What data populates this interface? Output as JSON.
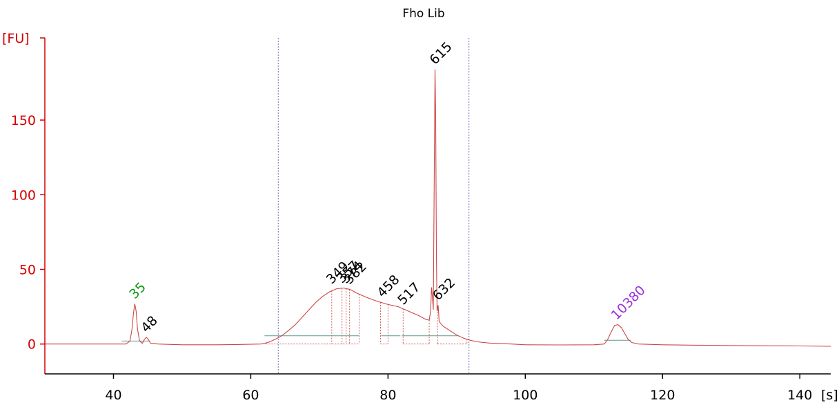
{
  "chart_data": {
    "type": "line",
    "title": "Fho Lib",
    "xlabel": "[s]",
    "ylabel": "[FU]",
    "xlim": [
      30,
      144.5
    ],
    "ylim": [
      -20,
      205
    ],
    "xticks": [
      40,
      60,
      80,
      100,
      120,
      140
    ],
    "yticks": [
      0,
      50,
      100,
      150
    ],
    "colors": {
      "trace": "#cd4545",
      "axis_y": "#d40000",
      "baseline": "#5e9c8c",
      "marker_line": "#4a4ab0",
      "lower_marker": "#119911",
      "upper_marker": "#9933dd",
      "peak_label": "#000000"
    },
    "series": [
      {
        "values": [
          [
            30,
            0
          ],
          [
            41.8,
            0
          ],
          [
            42.4,
            2
          ],
          [
            42.7,
            10
          ],
          [
            42.9,
            20
          ],
          [
            43.1,
            27
          ],
          [
            43.3,
            22
          ],
          [
            43.5,
            10
          ],
          [
            43.8,
            2
          ],
          [
            44.2,
            0.5
          ],
          [
            44.5,
            3
          ],
          [
            44.8,
            4.5
          ],
          [
            45.1,
            3
          ],
          [
            45.4,
            0.5
          ],
          [
            46.5,
            0
          ],
          [
            50,
            -0.5
          ],
          [
            55,
            -0.5
          ],
          [
            58,
            -0.3
          ],
          [
            61.5,
            0
          ],
          [
            62.5,
            1
          ],
          [
            63.5,
            3
          ],
          [
            64.5,
            5.5
          ],
          [
            65.5,
            9
          ],
          [
            66.5,
            13
          ],
          [
            67.5,
            18
          ],
          [
            68.5,
            23
          ],
          [
            69.5,
            28
          ],
          [
            70.5,
            32
          ],
          [
            71.5,
            35
          ],
          [
            72.5,
            37
          ],
          [
            73.5,
            37.5
          ],
          [
            74.5,
            36.5
          ],
          [
            75.5,
            34
          ],
          [
            77,
            31
          ],
          [
            78.5,
            28.5
          ],
          [
            80,
            26.5
          ],
          [
            81.5,
            25
          ],
          [
            83,
            22
          ],
          [
            84.5,
            19
          ],
          [
            85.5,
            16.5
          ],
          [
            86,
            16
          ],
          [
            86.2,
            22
          ],
          [
            86.35,
            38
          ],
          [
            86.5,
            30
          ],
          [
            86.6,
            23
          ],
          [
            86.75,
            120
          ],
          [
            86.85,
            184
          ],
          [
            86.95,
            150
          ],
          [
            87.05,
            60
          ],
          [
            87.15,
            22
          ],
          [
            87.3,
            26
          ],
          [
            87.45,
            15
          ],
          [
            88,
            12
          ],
          [
            89,
            9
          ],
          [
            90,
            6
          ],
          [
            91,
            4
          ],
          [
            92,
            2.5
          ],
          [
            93,
            1.5
          ],
          [
            95,
            0.5
          ],
          [
            98,
            0
          ],
          [
            100,
            -0.5
          ],
          [
            105,
            -0.6
          ],
          [
            110,
            -0.5
          ],
          [
            111.5,
            0
          ],
          [
            112,
            3
          ],
          [
            112.5,
            8
          ],
          [
            113,
            12.5
          ],
          [
            113.5,
            13
          ],
          [
            114,
            11
          ],
          [
            114.5,
            7
          ],
          [
            115,
            3
          ],
          [
            115.5,
            1
          ],
          [
            116.5,
            0
          ],
          [
            120,
            -0.5
          ],
          [
            125,
            -0.8
          ],
          [
            130,
            -1
          ],
          [
            135,
            -1.2
          ],
          [
            140,
            -1.3
          ],
          [
            144.5,
            -1.5
          ]
        ]
      }
    ],
    "boundaries": [
      64,
      91.8
    ],
    "baselines": [
      {
        "x": [
          41.2,
          45.3
        ],
        "y": 2
      },
      {
        "x": [
          111.5,
          115.4
        ],
        "y": 2.5
      },
      {
        "x": [
          62,
          75.8
        ],
        "y": 5.5
      },
      {
        "x": [
          79,
          81.8
        ],
        "y": 5.5
      },
      {
        "x": [
          82,
          90.3
        ],
        "y": 5.5
      }
    ],
    "regions": [
      {
        "x1": 62.2,
        "x2": 75.8,
        "drops": [
          71.8,
          73.3,
          73.9,
          74.4
        ]
      },
      {
        "x1": 78.9,
        "x2": 80,
        "drops": []
      },
      {
        "x1": 82.2,
        "x2": 86,
        "drops": []
      },
      {
        "x1": 87.2,
        "x2": 91.5,
        "drops": []
      }
    ],
    "peaks": [
      {
        "label": "35",
        "x": 43.1,
        "y": 27,
        "color": "#119911"
      },
      {
        "label": "48",
        "x": 44.8,
        "y": 4.5,
        "color": "#000000"
      },
      {
        "label": "349",
        "x": 71.8,
        "y": 37,
        "color": "#000000"
      },
      {
        "label": "357",
        "x": 73.3,
        "y": 37.5,
        "color": "#000000"
      },
      {
        "label": "374",
        "x": 73.9,
        "y": 37.3,
        "color": "#000000"
      },
      {
        "label": "382",
        "x": 74.4,
        "y": 36.8,
        "color": "#000000"
      },
      {
        "label": "458",
        "x": 79.2,
        "y": 28,
        "color": "#000000"
      },
      {
        "label": "517",
        "x": 82.2,
        "y": 23,
        "color": "#000000"
      },
      {
        "label": "615",
        "x": 86.85,
        "y": 184,
        "color": "#000000"
      },
      {
        "label": "632",
        "x": 87.3,
        "y": 26,
        "color": "#000000"
      },
      {
        "label": "10380",
        "x": 113.3,
        "y": 13,
        "color": "#9933dd"
      }
    ]
  }
}
